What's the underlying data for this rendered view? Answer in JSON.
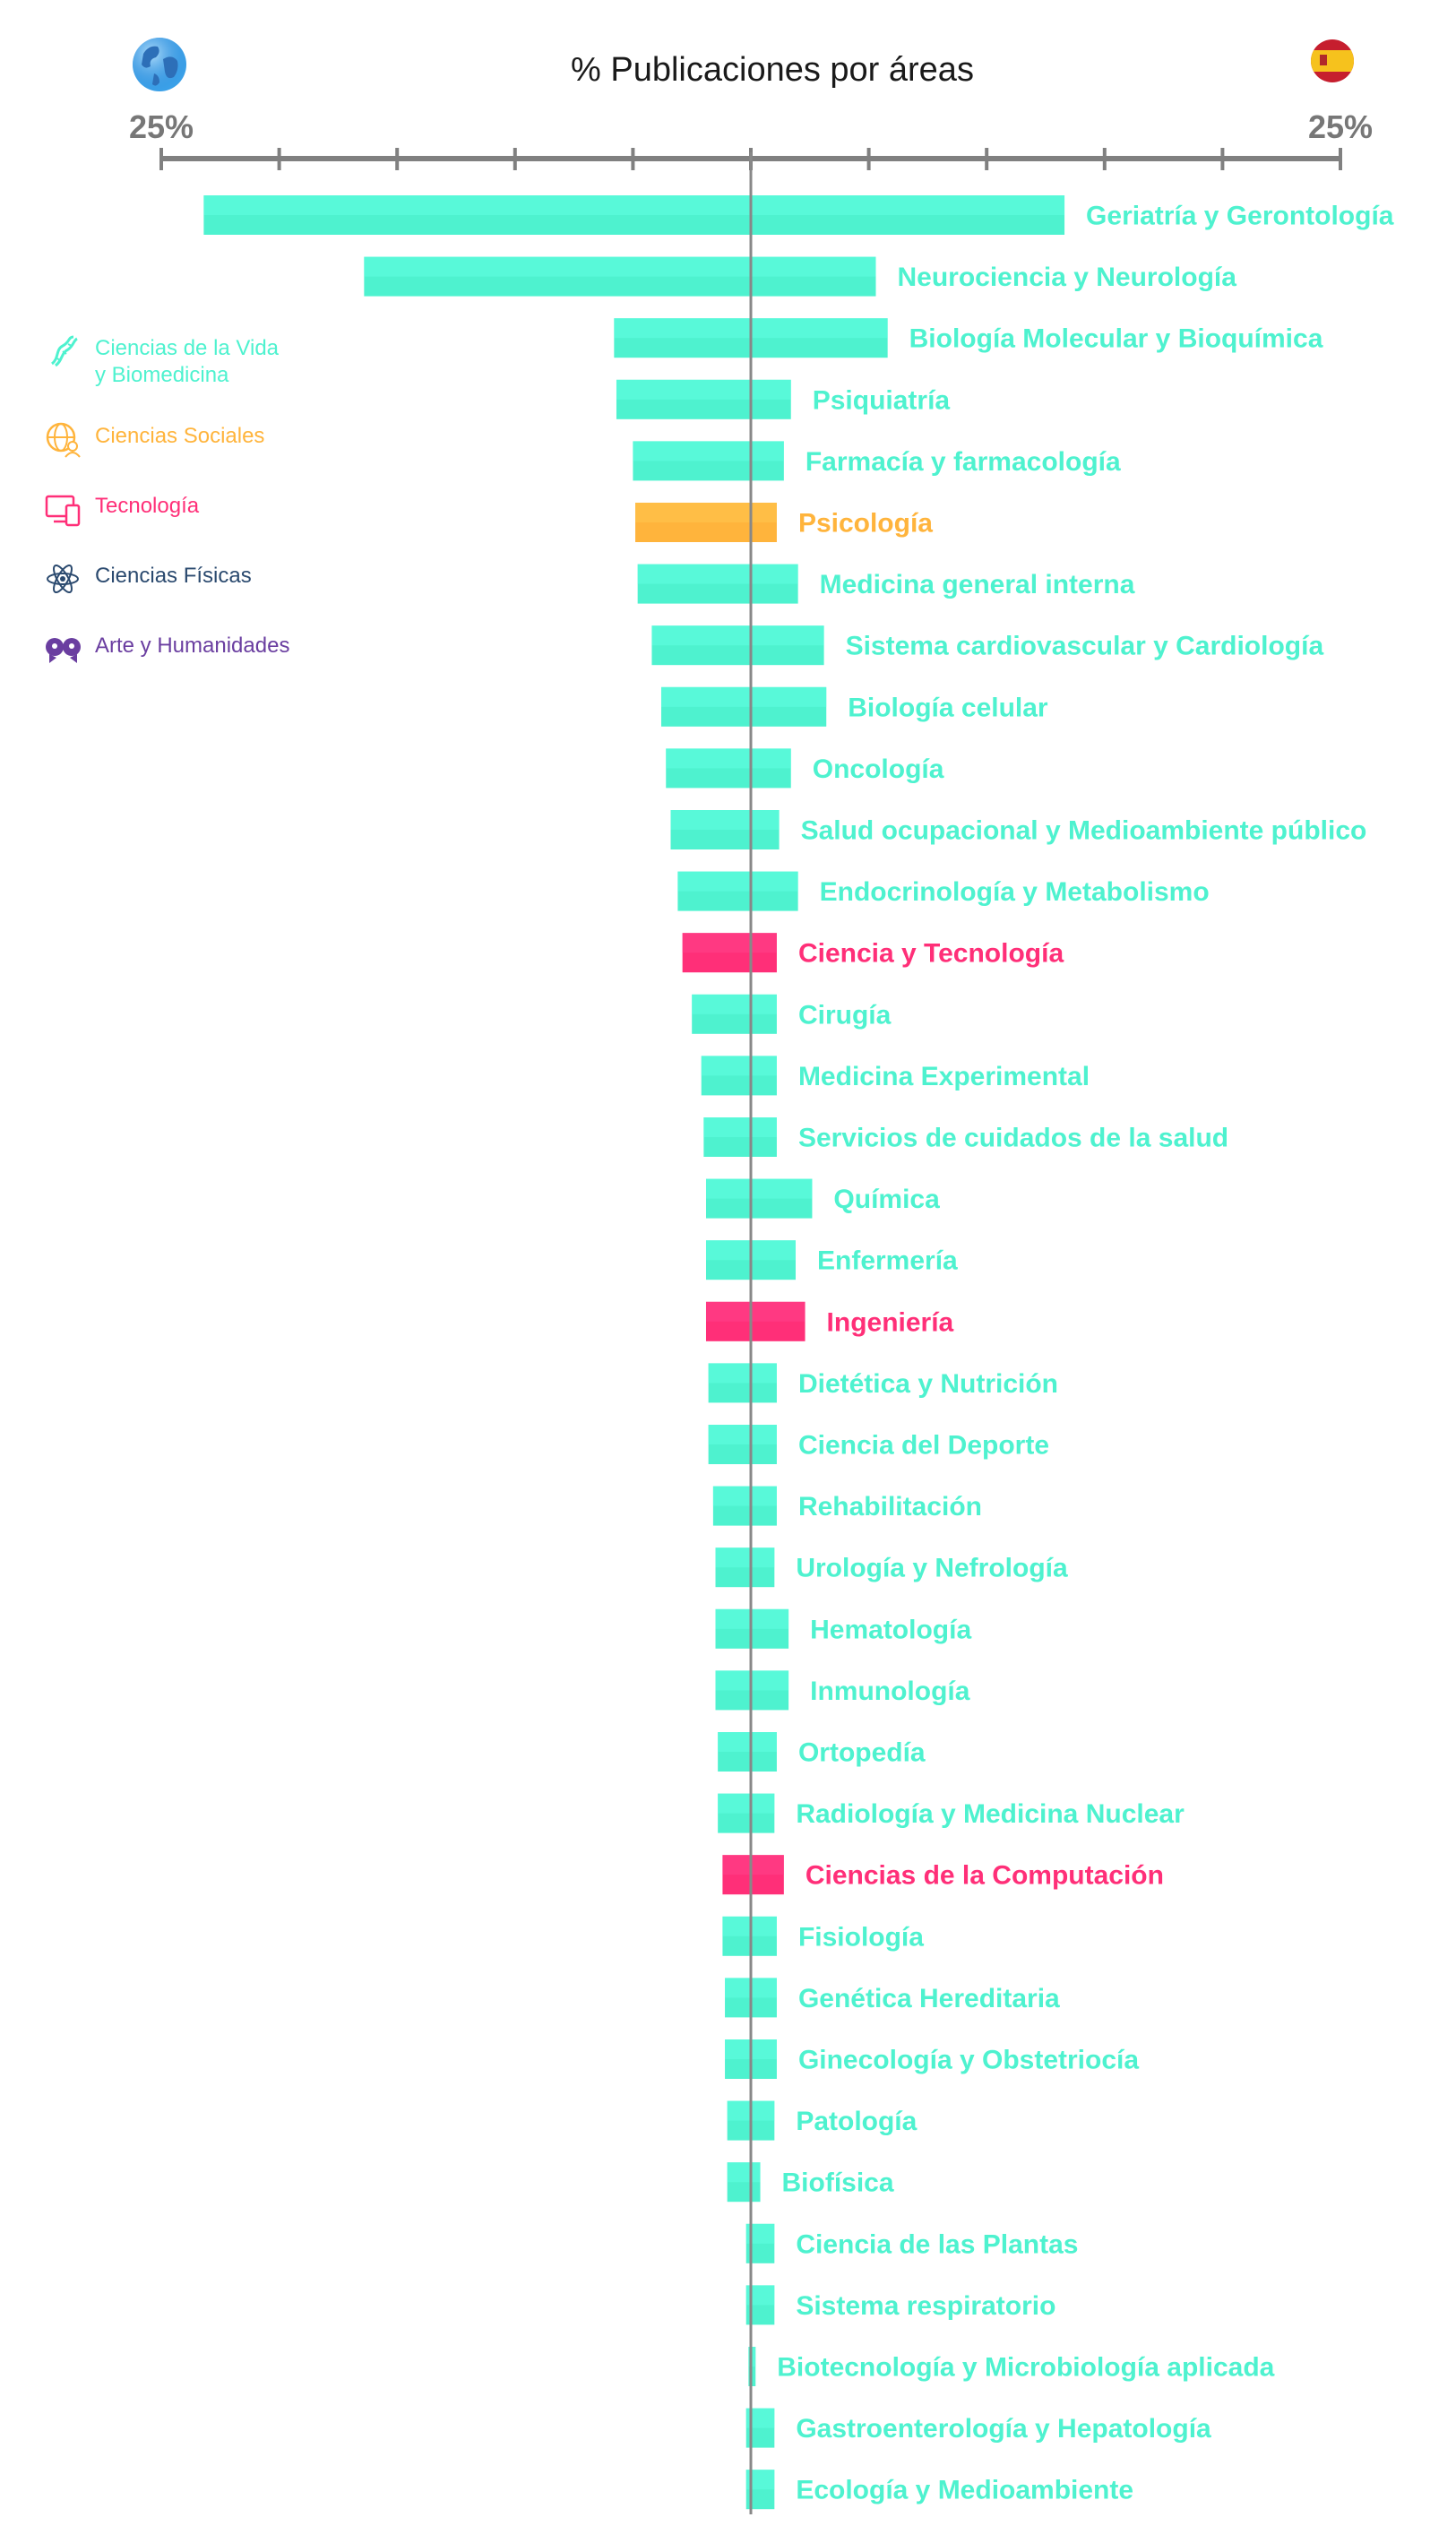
{
  "chart_data": {
    "type": "bar",
    "title": "% Publicaciones por áreas",
    "axis_left_label": "25%",
    "axis_right_label": "25%",
    "xlim": [
      -25,
      25
    ],
    "left_series": "",
    "right_series": "",
    "left_icon": "globe-icon",
    "right_icon": "spain-flag-icon",
    "colors": {
      "ciencias_vida": "#4ef2cf",
      "ciencias_sociales": "#ffb43c",
      "tecnologia": "#ff2f78",
      "ciencias_fisicas": "#2b4a6f",
      "arte_humanidades": "#6a3ea0",
      "axis": "#808080"
    },
    "rows": [
      {
        "label": "Geriatría y Gerontología",
        "category": "ciencias_vida",
        "left": 23.2,
        "right": 13.3
      },
      {
        "label": "Neurociencia y Neurología",
        "category": "ciencias_vida",
        "left": 16.4,
        "right": 5.3
      },
      {
        "label": "Biología Molecular y Bioquímica",
        "category": "ciencias_vida",
        "left": 5.8,
        "right": 5.8
      },
      {
        "label": "Psiquiatría",
        "category": "ciencias_vida",
        "left": 5.7,
        "right": 1.7
      },
      {
        "label": "Farmacía y farmacología",
        "category": "ciencias_vida",
        "left": 5.0,
        "right": 1.4
      },
      {
        "label": "Psicología",
        "category": "ciencias_sociales",
        "left": 4.9,
        "right": 1.1
      },
      {
        "label": "Medicina general interna",
        "category": "ciencias_vida",
        "left": 4.8,
        "right": 2.0
      },
      {
        "label": "Sistema cardiovascular y Cardiología",
        "category": "ciencias_vida",
        "left": 4.2,
        "right": 3.1
      },
      {
        "label": "Biología celular",
        "category": "ciencias_vida",
        "left": 3.8,
        "right": 3.2
      },
      {
        "label": "Oncología",
        "category": "ciencias_vida",
        "left": 3.6,
        "right": 1.7
      },
      {
        "label": "Salud ocupacional y Medioambiente público",
        "category": "ciencias_vida",
        "left": 3.4,
        "right": 1.2
      },
      {
        "label": "Endocrinología y Metabolismo",
        "category": "ciencias_vida",
        "left": 3.1,
        "right": 2.0
      },
      {
        "label": "Ciencia y Tecnología",
        "category": "tecnologia",
        "left": 2.9,
        "right": 1.1
      },
      {
        "label": "Cirugía",
        "category": "ciencias_vida",
        "left": 2.5,
        "right": 1.1
      },
      {
        "label": "Medicina Experimental",
        "category": "ciencias_vida",
        "left": 2.1,
        "right": 1.1
      },
      {
        "label": "Servicios de cuidados de la salud",
        "category": "ciencias_vida",
        "left": 2.0,
        "right": 1.1
      },
      {
        "label": "Química",
        "category": "ciencias_vida",
        "left": 1.9,
        "right": 2.6
      },
      {
        "label": "Enfermería",
        "category": "ciencias_vida",
        "left": 1.9,
        "right": 1.9
      },
      {
        "label": "Ingeniería",
        "category": "tecnologia",
        "left": 1.9,
        "right": 2.3
      },
      {
        "label": "Dietética y Nutrición",
        "category": "ciencias_vida",
        "left": 1.8,
        "right": 1.1
      },
      {
        "label": "Ciencia del Deporte",
        "category": "ciencias_vida",
        "left": 1.8,
        "right": 1.1
      },
      {
        "label": "Rehabilitación",
        "category": "ciencias_vida",
        "left": 1.6,
        "right": 1.1
      },
      {
        "label": "Urología y Nefrología",
        "category": "ciencias_vida",
        "left": 1.5,
        "right": 1.0
      },
      {
        "label": "Hematología",
        "category": "ciencias_vida",
        "left": 1.5,
        "right": 1.6
      },
      {
        "label": "Inmunología",
        "category": "ciencias_vida",
        "left": 1.5,
        "right": 1.6
      },
      {
        "label": "Ortopedía",
        "category": "ciencias_vida",
        "left": 1.4,
        "right": 1.1
      },
      {
        "label": "Radiología y Medicina Nuclear",
        "category": "ciencias_vida",
        "left": 1.4,
        "right": 1.0
      },
      {
        "label": "Ciencias de la Computación",
        "category": "tecnologia",
        "left": 1.2,
        "right": 1.4
      },
      {
        "label": "Fisiología",
        "category": "ciencias_vida",
        "left": 1.2,
        "right": 1.1
      },
      {
        "label": "Genética Hereditaria",
        "category": "ciencias_vida",
        "left": 1.1,
        "right": 1.1
      },
      {
        "label": "Ginecología y Obstetriocía",
        "category": "ciencias_vida",
        "left": 1.1,
        "right": 1.1
      },
      {
        "label": "Patología",
        "category": "ciencias_vida",
        "left": 1.0,
        "right": 1.0
      },
      {
        "label": "Biofísica",
        "category": "ciencias_vida",
        "left": 1.0,
        "right": 0.4
      },
      {
        "label": "Ciencia de las Plantas",
        "category": "ciencias_vida",
        "left": 0.2,
        "right": 1.0
      },
      {
        "label": "Sistema respiratorio",
        "category": "ciencias_vida",
        "left": 0.2,
        "right": 1.0
      },
      {
        "label": "Biotecnología y Microbiología aplicada",
        "category": "ciencias_vida",
        "left": 0.1,
        "right": 0.2
      },
      {
        "label": "Gastroenterología y Hepatología",
        "category": "ciencias_vida",
        "left": 0.2,
        "right": 1.0
      },
      {
        "label": "Ecología y Medioambiente",
        "category": "ciencias_vida",
        "left": 0.2,
        "right": 1.0
      }
    ]
  },
  "legend": [
    {
      "label": "Ciencias de la Vida\ny Biomedicina",
      "category": "ciencias_vida",
      "icon": "dna-icon"
    },
    {
      "label": "Ciencias Sociales",
      "category": "ciencias_sociales",
      "icon": "globe-people-icon"
    },
    {
      "label": "Tecnología",
      "category": "tecnologia",
      "icon": "devices-icon"
    },
    {
      "label": "Ciencias Físicas",
      "category": "ciencias_fisicas",
      "icon": "atom-icon"
    },
    {
      "label": "Arte y Humanidades",
      "category": "arte_humanidades",
      "icon": "heads-icon"
    }
  ]
}
